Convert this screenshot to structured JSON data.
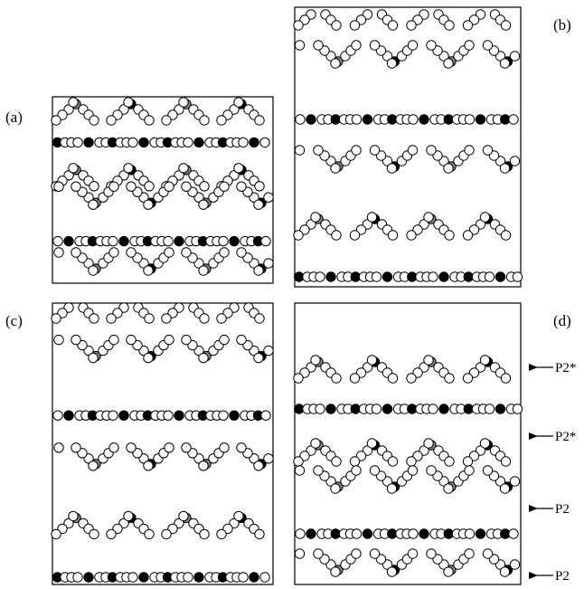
{
  "panels": [
    {
      "label": "(a)",
      "rows": [
        "edge",
        "bridge",
        "edge",
        "edge",
        "bridge",
        "edge"
      ]
    },
    {
      "label": "(b)",
      "rows": [
        "edge",
        "edge",
        "bridge",
        "edge",
        "edge",
        "bridge"
      ]
    },
    {
      "label": "(c)",
      "rows": [
        "edge",
        "edge",
        "bridge",
        "edge",
        "edge",
        "bridge"
      ]
    },
    {
      "label": "(d)",
      "rows": [
        "edge",
        "bridge",
        "edge",
        "edge",
        "bridge",
        "edge"
      ]
    }
  ],
  "row_annotations": [
    "P2*",
    "P2*",
    "P2",
    "P2"
  ],
  "colors": {
    "filled": "#000000",
    "gray": "#808080",
    "open": "#ffffff",
    "stroke": "#000000"
  }
}
